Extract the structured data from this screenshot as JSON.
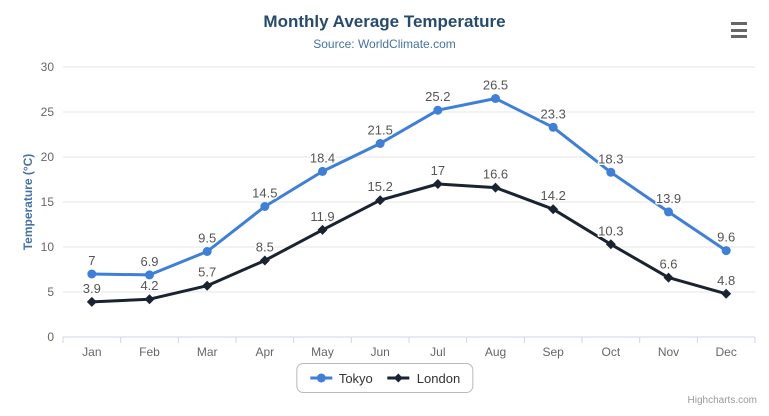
{
  "credits": "Highcharts.com",
  "colors": {
    "title": "#274b6d",
    "subtitle": "#4572a7",
    "axis_title": "#4572a7",
    "tick_label": "#666666",
    "grid": "#e6e6e6",
    "axis_line": "#ccd6eb",
    "data_label": "#555555",
    "legend_border": "#b9b9b9",
    "credits_color": "#999999",
    "menu_icon_color": "#666666"
  },
  "menu_icon": "hamburger-icon",
  "chart_data": {
    "type": "line",
    "title": "Monthly Average Temperature",
    "subtitle": "Source: WorldClimate.com",
    "categories": [
      "Jan",
      "Feb",
      "Mar",
      "Apr",
      "May",
      "Jun",
      "Jul",
      "Aug",
      "Sep",
      "Oct",
      "Nov",
      "Dec"
    ],
    "series": [
      {
        "name": "Tokyo",
        "color": "#3e7fd9",
        "marker": "circle",
        "values": [
          7,
          6.9,
          9.5,
          14.5,
          18.4,
          21.5,
          25.2,
          26.5,
          23.3,
          18.3,
          13.9,
          9.6
        ]
      },
      {
        "name": "London",
        "color": "#1a2332",
        "marker": "diamond",
        "values": [
          3.9,
          4.2,
          5.7,
          8.5,
          11.9,
          15.2,
          17,
          16.6,
          14.2,
          10.3,
          6.6,
          4.8
        ]
      }
    ],
    "xlabel": "",
    "ylabel": "Temperature (°C)",
    "ylim": [
      0,
      30
    ],
    "yticks": [
      0,
      5,
      10,
      15,
      20,
      25,
      30
    ],
    "grid": true,
    "legend_position": "bottom",
    "data_labels": true
  }
}
